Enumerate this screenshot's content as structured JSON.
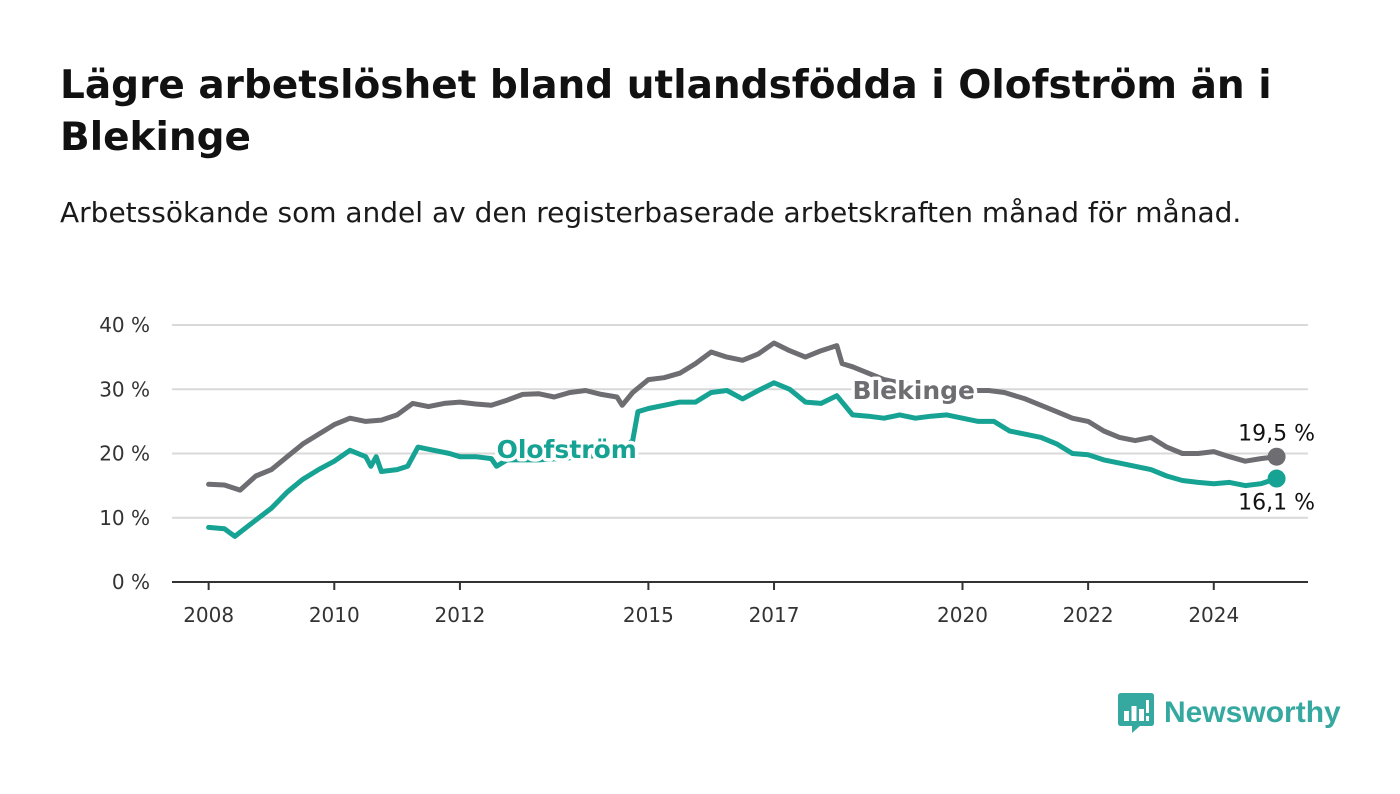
{
  "header": {
    "title": "Lägre arbetslöshet bland utlandsfödda i Olofström än i Blekinge",
    "subtitle": "Arbetssökande som andel av den registerbaserade arbetskraften månad för månad."
  },
  "brand": {
    "name": "Newsworthy",
    "icon": "newsworthy-logo-icon",
    "color": "#35a8a0"
  },
  "chart_data": {
    "type": "line",
    "title": "Lägre arbetslöshet bland utlandsfödda i Olofström än i Blekinge",
    "xlabel": "",
    "ylabel": "",
    "ylim": [
      0,
      40
    ],
    "y_ticks": [
      {
        "value": 0,
        "label": "0 %"
      },
      {
        "value": 10,
        "label": "10 %"
      },
      {
        "value": 20,
        "label": "20 %"
      },
      {
        "value": 30,
        "label": "30 %"
      },
      {
        "value": 40,
        "label": "40 %"
      }
    ],
    "x_ticks": [
      {
        "value": "2008-01",
        "label": "2008"
      },
      {
        "value": "2010-01",
        "label": "2010"
      },
      {
        "value": "2012-01",
        "label": "2012"
      },
      {
        "value": "2015-01",
        "label": "2015"
      },
      {
        "value": "2017-01",
        "label": "2017"
      },
      {
        "value": "2020-01",
        "label": "2020"
      },
      {
        "value": "2022-01",
        "label": "2022"
      },
      {
        "value": "2024-01",
        "label": "2024"
      }
    ],
    "xlim": [
      "2007-06",
      "2025-07"
    ],
    "grid": true,
    "legend": "direct labels",
    "series": [
      {
        "name": "Blekinge",
        "color": "#6e6d72",
        "end_label": "19,5 %",
        "points": [
          [
            "2008-01",
            15.2
          ],
          [
            "2008-04",
            15.1
          ],
          [
            "2008-07",
            14.3
          ],
          [
            "2008-10",
            16.5
          ],
          [
            "2009-01",
            17.5
          ],
          [
            "2009-04",
            19.5
          ],
          [
            "2009-07",
            21.5
          ],
          [
            "2009-10",
            23.0
          ],
          [
            "2010-01",
            24.5
          ],
          [
            "2010-04",
            25.5
          ],
          [
            "2010-07",
            25.0
          ],
          [
            "2010-10",
            25.2
          ],
          [
            "2011-01",
            26.0
          ],
          [
            "2011-04",
            27.8
          ],
          [
            "2011-07",
            27.3
          ],
          [
            "2011-10",
            27.8
          ],
          [
            "2012-01",
            28.0
          ],
          [
            "2012-04",
            27.7
          ],
          [
            "2012-07",
            27.5
          ],
          [
            "2012-10",
            28.3
          ],
          [
            "2013-01",
            29.2
          ],
          [
            "2013-04",
            29.3
          ],
          [
            "2013-07",
            28.8
          ],
          [
            "2013-10",
            29.5
          ],
          [
            "2014-01",
            29.8
          ],
          [
            "2014-04",
            29.2
          ],
          [
            "2014-07",
            28.8
          ],
          [
            "2014-08",
            27.5
          ],
          [
            "2014-10",
            29.5
          ],
          [
            "2015-01",
            31.5
          ],
          [
            "2015-04",
            31.8
          ],
          [
            "2015-07",
            32.5
          ],
          [
            "2015-10",
            34.0
          ],
          [
            "2016-01",
            35.8
          ],
          [
            "2016-04",
            35.0
          ],
          [
            "2016-07",
            34.5
          ],
          [
            "2016-10",
            35.5
          ],
          [
            "2017-01",
            37.2
          ],
          [
            "2017-04",
            36.0
          ],
          [
            "2017-07",
            35.0
          ],
          [
            "2017-10",
            36.0
          ],
          [
            "2018-01",
            36.8
          ],
          [
            "2018-02",
            34.0
          ],
          [
            "2018-04",
            33.5
          ],
          [
            "2018-07",
            32.5
          ],
          [
            "2018-10",
            31.5
          ],
          [
            "2019-01",
            31.0
          ],
          [
            "2019-04",
            30.5
          ],
          [
            "2019-07",
            30.0
          ],
          [
            "2019-10",
            30.0
          ],
          [
            "2020-01",
            29.8
          ],
          [
            "2020-06",
            29.8
          ],
          [
            "2020-09",
            29.5
          ],
          [
            "2021-01",
            28.5
          ],
          [
            "2021-04",
            27.5
          ],
          [
            "2021-07",
            26.5
          ],
          [
            "2021-10",
            25.5
          ],
          [
            "2022-01",
            25.0
          ],
          [
            "2022-04",
            23.5
          ],
          [
            "2022-07",
            22.5
          ],
          [
            "2022-10",
            22.0
          ],
          [
            "2023-01",
            22.5
          ],
          [
            "2023-04",
            21.0
          ],
          [
            "2023-07",
            20.0
          ],
          [
            "2023-10",
            20.0
          ],
          [
            "2024-01",
            20.3
          ],
          [
            "2024-04",
            19.5
          ],
          [
            "2024-07",
            18.8
          ],
          [
            "2024-10",
            19.2
          ],
          [
            "2025-01",
            19.5
          ]
        ]
      },
      {
        "name": "Olofström",
        "color": "#16a394",
        "end_label": "16,1 %",
        "points": [
          [
            "2008-01",
            8.5
          ],
          [
            "2008-04",
            8.3
          ],
          [
            "2008-06",
            7.1
          ],
          [
            "2008-09",
            9.0
          ],
          [
            "2009-01",
            11.5
          ],
          [
            "2009-04",
            14.0
          ],
          [
            "2009-07",
            16.0
          ],
          [
            "2009-10",
            17.5
          ],
          [
            "2010-01",
            18.8
          ],
          [
            "2010-04",
            20.5
          ],
          [
            "2010-07",
            19.5
          ],
          [
            "2010-08",
            18.0
          ],
          [
            "2010-09",
            19.5
          ],
          [
            "2010-10",
            17.2
          ],
          [
            "2011-01",
            17.5
          ],
          [
            "2011-03",
            18.0
          ],
          [
            "2011-05",
            21.0
          ],
          [
            "2011-08",
            20.5
          ],
          [
            "2011-11",
            20.0
          ],
          [
            "2012-01",
            19.5
          ],
          [
            "2012-04",
            19.5
          ],
          [
            "2012-07",
            19.2
          ],
          [
            "2012-08",
            18.0
          ],
          [
            "2012-10",
            19.0
          ],
          [
            "2013-04",
            19.0
          ],
          [
            "2014-01",
            19.5
          ],
          [
            "2014-07",
            20.0
          ],
          [
            "2014-10",
            22.0
          ],
          [
            "2014-11",
            26.5
          ],
          [
            "2015-01",
            27.0
          ],
          [
            "2015-04",
            27.5
          ],
          [
            "2015-07",
            28.0
          ],
          [
            "2015-10",
            28.0
          ],
          [
            "2016-01",
            29.5
          ],
          [
            "2016-04",
            29.8
          ],
          [
            "2016-07",
            28.5
          ],
          [
            "2016-10",
            29.8
          ],
          [
            "2017-01",
            31.0
          ],
          [
            "2017-04",
            30.0
          ],
          [
            "2017-07",
            28.0
          ],
          [
            "2017-10",
            27.8
          ],
          [
            "2018-01",
            29.0
          ],
          [
            "2018-04",
            26.0
          ],
          [
            "2018-07",
            25.8
          ],
          [
            "2018-10",
            25.5
          ],
          [
            "2019-01",
            26.0
          ],
          [
            "2019-04",
            25.5
          ],
          [
            "2019-07",
            25.8
          ],
          [
            "2019-10",
            26.0
          ],
          [
            "2020-01",
            25.5
          ],
          [
            "2020-04",
            25.0
          ],
          [
            "2020-07",
            25.0
          ],
          [
            "2020-10",
            23.5
          ],
          [
            "2021-01",
            23.0
          ],
          [
            "2021-04",
            22.5
          ],
          [
            "2021-07",
            21.5
          ],
          [
            "2021-10",
            20.0
          ],
          [
            "2022-01",
            19.8
          ],
          [
            "2022-04",
            19.0
          ],
          [
            "2022-07",
            18.5
          ],
          [
            "2022-10",
            18.0
          ],
          [
            "2023-01",
            17.5
          ],
          [
            "2023-04",
            16.5
          ],
          [
            "2023-07",
            15.8
          ],
          [
            "2023-10",
            15.5
          ],
          [
            "2024-01",
            15.3
          ],
          [
            "2024-04",
            15.5
          ],
          [
            "2024-07",
            15.0
          ],
          [
            "2024-10",
            15.3
          ],
          [
            "2025-01",
            16.1
          ]
        ]
      }
    ]
  }
}
